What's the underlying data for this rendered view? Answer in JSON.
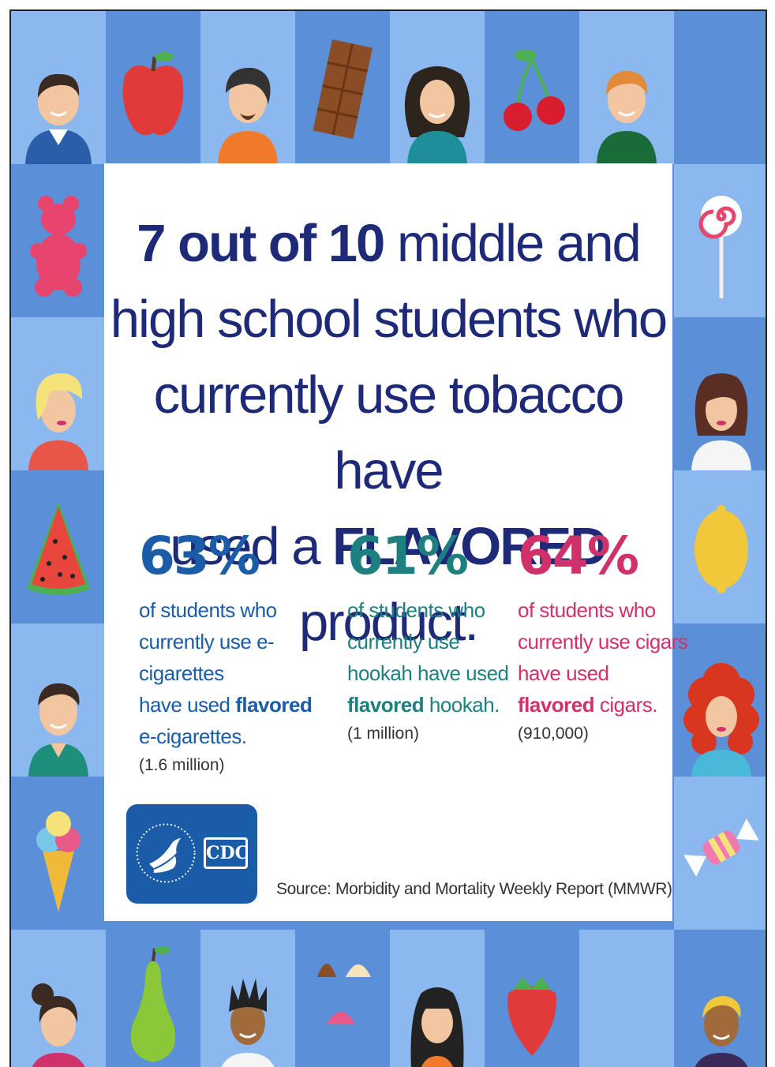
{
  "headline": {
    "line1_bold": "7 out of 10",
    "line1_rest": " middle and",
    "line2": "high school students who",
    "line3": "currently use tobacco have",
    "line4_start": "used a ",
    "line4_bold": "FLAVORED",
    "line4_end": " product."
  },
  "stats": [
    {
      "percent": "63%",
      "line1": "of students who",
      "line2": "currently use e-cigarettes",
      "line3_start": "have used ",
      "line3_bold": "flavored",
      "line4_start": "e-cigarettes.",
      "count": "(1.6 million)",
      "color": "#1a5ca8"
    },
    {
      "percent": "61%",
      "line1": "of students who",
      "line2": "currently use",
      "line3_start": "hookah have used",
      "line4_bold": "flavored",
      "line4_end": " hookah.",
      "count": "(1 million)",
      "color": "#1e7f80"
    },
    {
      "percent": "64%",
      "line1": "of students who",
      "line2": "currently use cigars",
      "line3_start": "have used",
      "line4_bold": "flavored",
      "line4_end": " cigars.",
      "count": "(910,000)",
      "color": "#d0316a"
    }
  ],
  "logo": {
    "cdc_text": "CDC"
  },
  "source": "Source: Morbidity and Mortality Weekly Report (MMWR)",
  "colors": {
    "navy": "#1e2a78",
    "tile_dark": "#5b8fd8",
    "tile_light": "#8ab8ef"
  },
  "border_icons": [
    "boy-avatar-icon",
    "apple-icon",
    "bearded-man-avatar-icon",
    "chocolate-bar-icon",
    "woman-avatar-icon",
    "cherries-icon",
    "redhead-man-avatar-icon",
    "gummy-bear-icon",
    "lollipop-icon",
    "blonde-woman-avatar-icon",
    "brunette-woman-avatar-icon",
    "watermelon-icon",
    "lemon-icon",
    "man-avatar-icon",
    "curly-redhead-avatar-icon",
    "ice-cream-cone-icon",
    "wrapped-candy-icon",
    "bun-woman-avatar-icon",
    "pear-icon",
    "spiky-hair-man-avatar-icon",
    "chocolates-icon",
    "long-hair-woman-avatar-icon",
    "strawberry-icon",
    "blonde-man-avatar-icon"
  ]
}
